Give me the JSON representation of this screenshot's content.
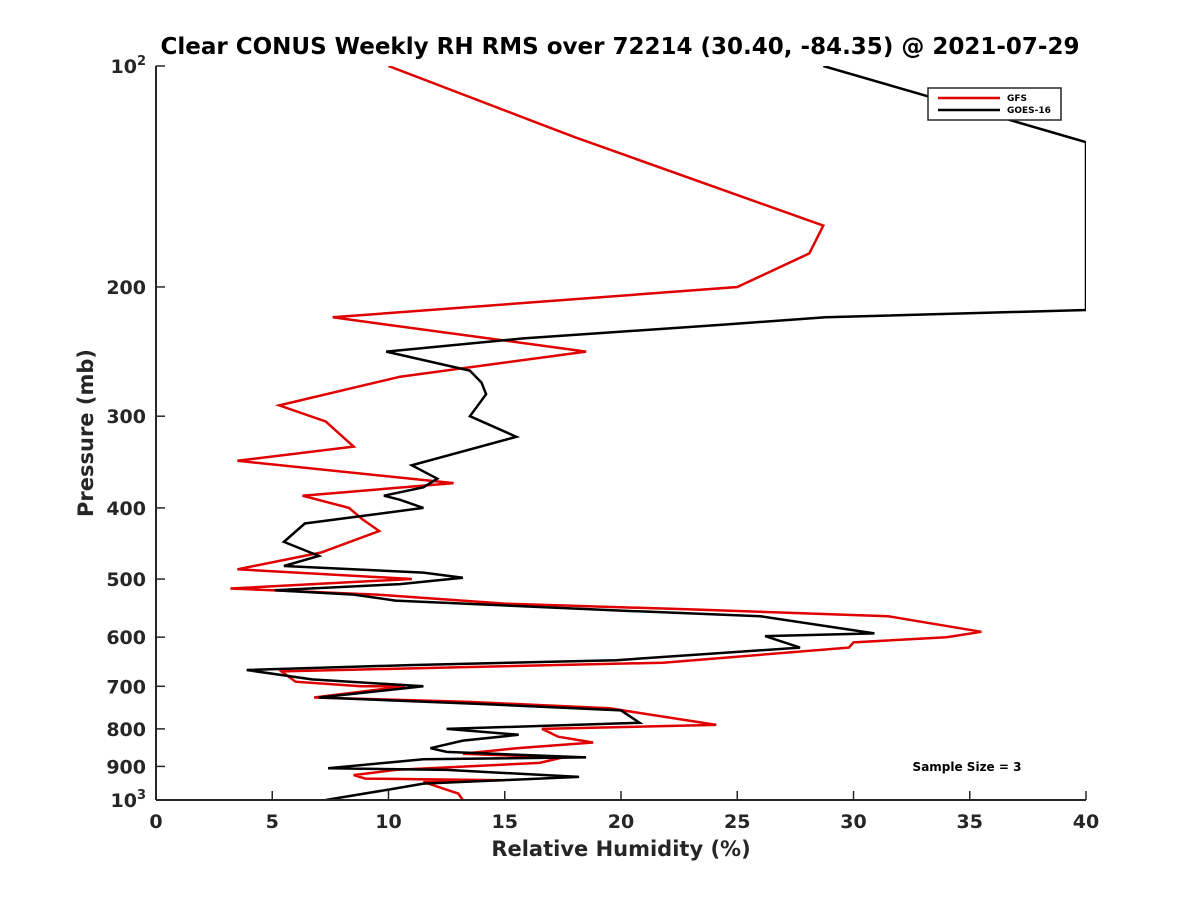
{
  "chart_data": {
    "type": "line",
    "title": "Clear CONUS Weekly RH RMS over 72214 (30.40, -84.35) @ 2021-07-29",
    "xlabel": "Relative Humidity (%)",
    "ylabel": "Pressure (mb)",
    "xlim": [
      0,
      40
    ],
    "ylim": [
      100,
      1000
    ],
    "yscale": "log",
    "y_reversed": true,
    "grid": false,
    "legend_position": "top-right",
    "x_ticks": [
      0,
      5,
      10,
      15,
      20,
      25,
      30,
      35,
      40
    ],
    "x_tick_labels": [
      "0",
      "5",
      "10",
      "15",
      "20",
      "25",
      "30",
      "35",
      "40"
    ],
    "y_ticks": [
      100,
      200,
      300,
      400,
      500,
      600,
      700,
      800,
      900,
      1000
    ],
    "y_tick_labels": [
      {
        "base": "10",
        "exp": "2"
      },
      {
        "base": "200",
        "exp": ""
      },
      {
        "base": "300",
        "exp": ""
      },
      {
        "base": "400",
        "exp": ""
      },
      {
        "base": "500",
        "exp": ""
      },
      {
        "base": "600",
        "exp": ""
      },
      {
        "base": "700",
        "exp": ""
      },
      {
        "base": "800",
        "exp": ""
      },
      {
        "base": "900",
        "exp": ""
      },
      {
        "base": "10",
        "exp": "3"
      }
    ],
    "series": [
      {
        "name": "GFS",
        "color": "#e00000",
        "points": [
          [
            10,
            100
          ],
          [
            18,
            125
          ],
          [
            28.7,
            165
          ],
          [
            28.1,
            180
          ],
          [
            25,
            200
          ],
          [
            7.6,
            220
          ],
          [
            18.5,
            245
          ],
          [
            10.5,
            265
          ],
          [
            5.3,
            290
          ],
          [
            7.3,
            305
          ],
          [
            8.5,
            330
          ],
          [
            3.5,
            345
          ],
          [
            12.8,
            370
          ],
          [
            6.3,
            385
          ],
          [
            8.3,
            400
          ],
          [
            8.9,
            415
          ],
          [
            9.6,
            430
          ],
          [
            7.1,
            460
          ],
          [
            3.5,
            485
          ],
          [
            11,
            500
          ],
          [
            3.2,
            515
          ],
          [
            9.5,
            525
          ],
          [
            15,
            540
          ],
          [
            23,
            550
          ],
          [
            31.5,
            562
          ],
          [
            35.5,
            590
          ],
          [
            34,
            600
          ],
          [
            30,
            610
          ],
          [
            29.8,
            620
          ],
          [
            21.8,
            650
          ],
          [
            12.6,
            660
          ],
          [
            5.4,
            668
          ],
          [
            6,
            690
          ],
          [
            8.8,
            700
          ],
          [
            10.7,
            700
          ],
          [
            6.8,
            725
          ],
          [
            13.5,
            735
          ],
          [
            19.5,
            750
          ],
          [
            24.1,
            790
          ],
          [
            16.6,
            800
          ],
          [
            17.3,
            820
          ],
          [
            18.8,
            835
          ],
          [
            15.5,
            850
          ],
          [
            13.2,
            865
          ],
          [
            17.5,
            875
          ],
          [
            16.5,
            890
          ],
          [
            10.3,
            910
          ],
          [
            8.5,
            925
          ],
          [
            9,
            935
          ],
          [
            15,
            940
          ],
          [
            11.5,
            945
          ],
          [
            13,
            980
          ],
          [
            13.2,
            1000
          ]
        ]
      },
      {
        "name": "GOES-16",
        "color": "#000000",
        "points": [
          [
            28.7,
            100
          ],
          [
            38.5,
            123
          ],
          [
            40,
            127
          ],
          [
            40,
            215
          ],
          [
            28.8,
            220
          ],
          [
            24.5,
            225
          ],
          [
            15.8,
            235
          ],
          [
            9.9,
            245
          ],
          [
            13.5,
            260
          ],
          [
            14,
            270
          ],
          [
            14.2,
            280
          ],
          [
            13.5,
            300
          ],
          [
            15.5,
            320
          ],
          [
            11,
            350
          ],
          [
            12.1,
            365
          ],
          [
            11.5,
            375
          ],
          [
            9.8,
            385
          ],
          [
            10.5,
            390
          ],
          [
            11.5,
            400
          ],
          [
            6.4,
            420
          ],
          [
            5.5,
            445
          ],
          [
            7,
            465
          ],
          [
            5.5,
            480
          ],
          [
            11.5,
            490
          ],
          [
            13.2,
            498
          ],
          [
            10.5,
            508
          ],
          [
            5.1,
            518
          ],
          [
            8.5,
            525
          ],
          [
            10.3,
            535
          ],
          [
            20,
            552
          ],
          [
            26,
            562
          ],
          [
            30.9,
            593
          ],
          [
            26.2,
            598
          ],
          [
            27.7,
            620
          ],
          [
            19.8,
            645
          ],
          [
            10.9,
            655
          ],
          [
            3.9,
            665
          ],
          [
            6.7,
            685
          ],
          [
            11.5,
            700
          ],
          [
            7,
            725
          ],
          [
            14,
            740
          ],
          [
            20,
            755
          ],
          [
            20.8,
            785
          ],
          [
            12.5,
            800
          ],
          [
            15.6,
            815
          ],
          [
            13.2,
            830
          ],
          [
            11.8,
            850
          ],
          [
            12.5,
            860
          ],
          [
            18.5,
            875
          ],
          [
            11.5,
            880
          ],
          [
            7.4,
            905
          ],
          [
            12.5,
            910
          ],
          [
            18.2,
            930
          ],
          [
            11.5,
            950
          ],
          [
            10,
            968
          ],
          [
            7.3,
            1000
          ]
        ]
      }
    ],
    "legend": [
      {
        "label": "GFS",
        "color": "#e00000"
      },
      {
        "label": "GOES-16",
        "color": "#000000"
      }
    ],
    "annotations": [
      {
        "text": "Sample Size = 3"
      }
    ]
  }
}
